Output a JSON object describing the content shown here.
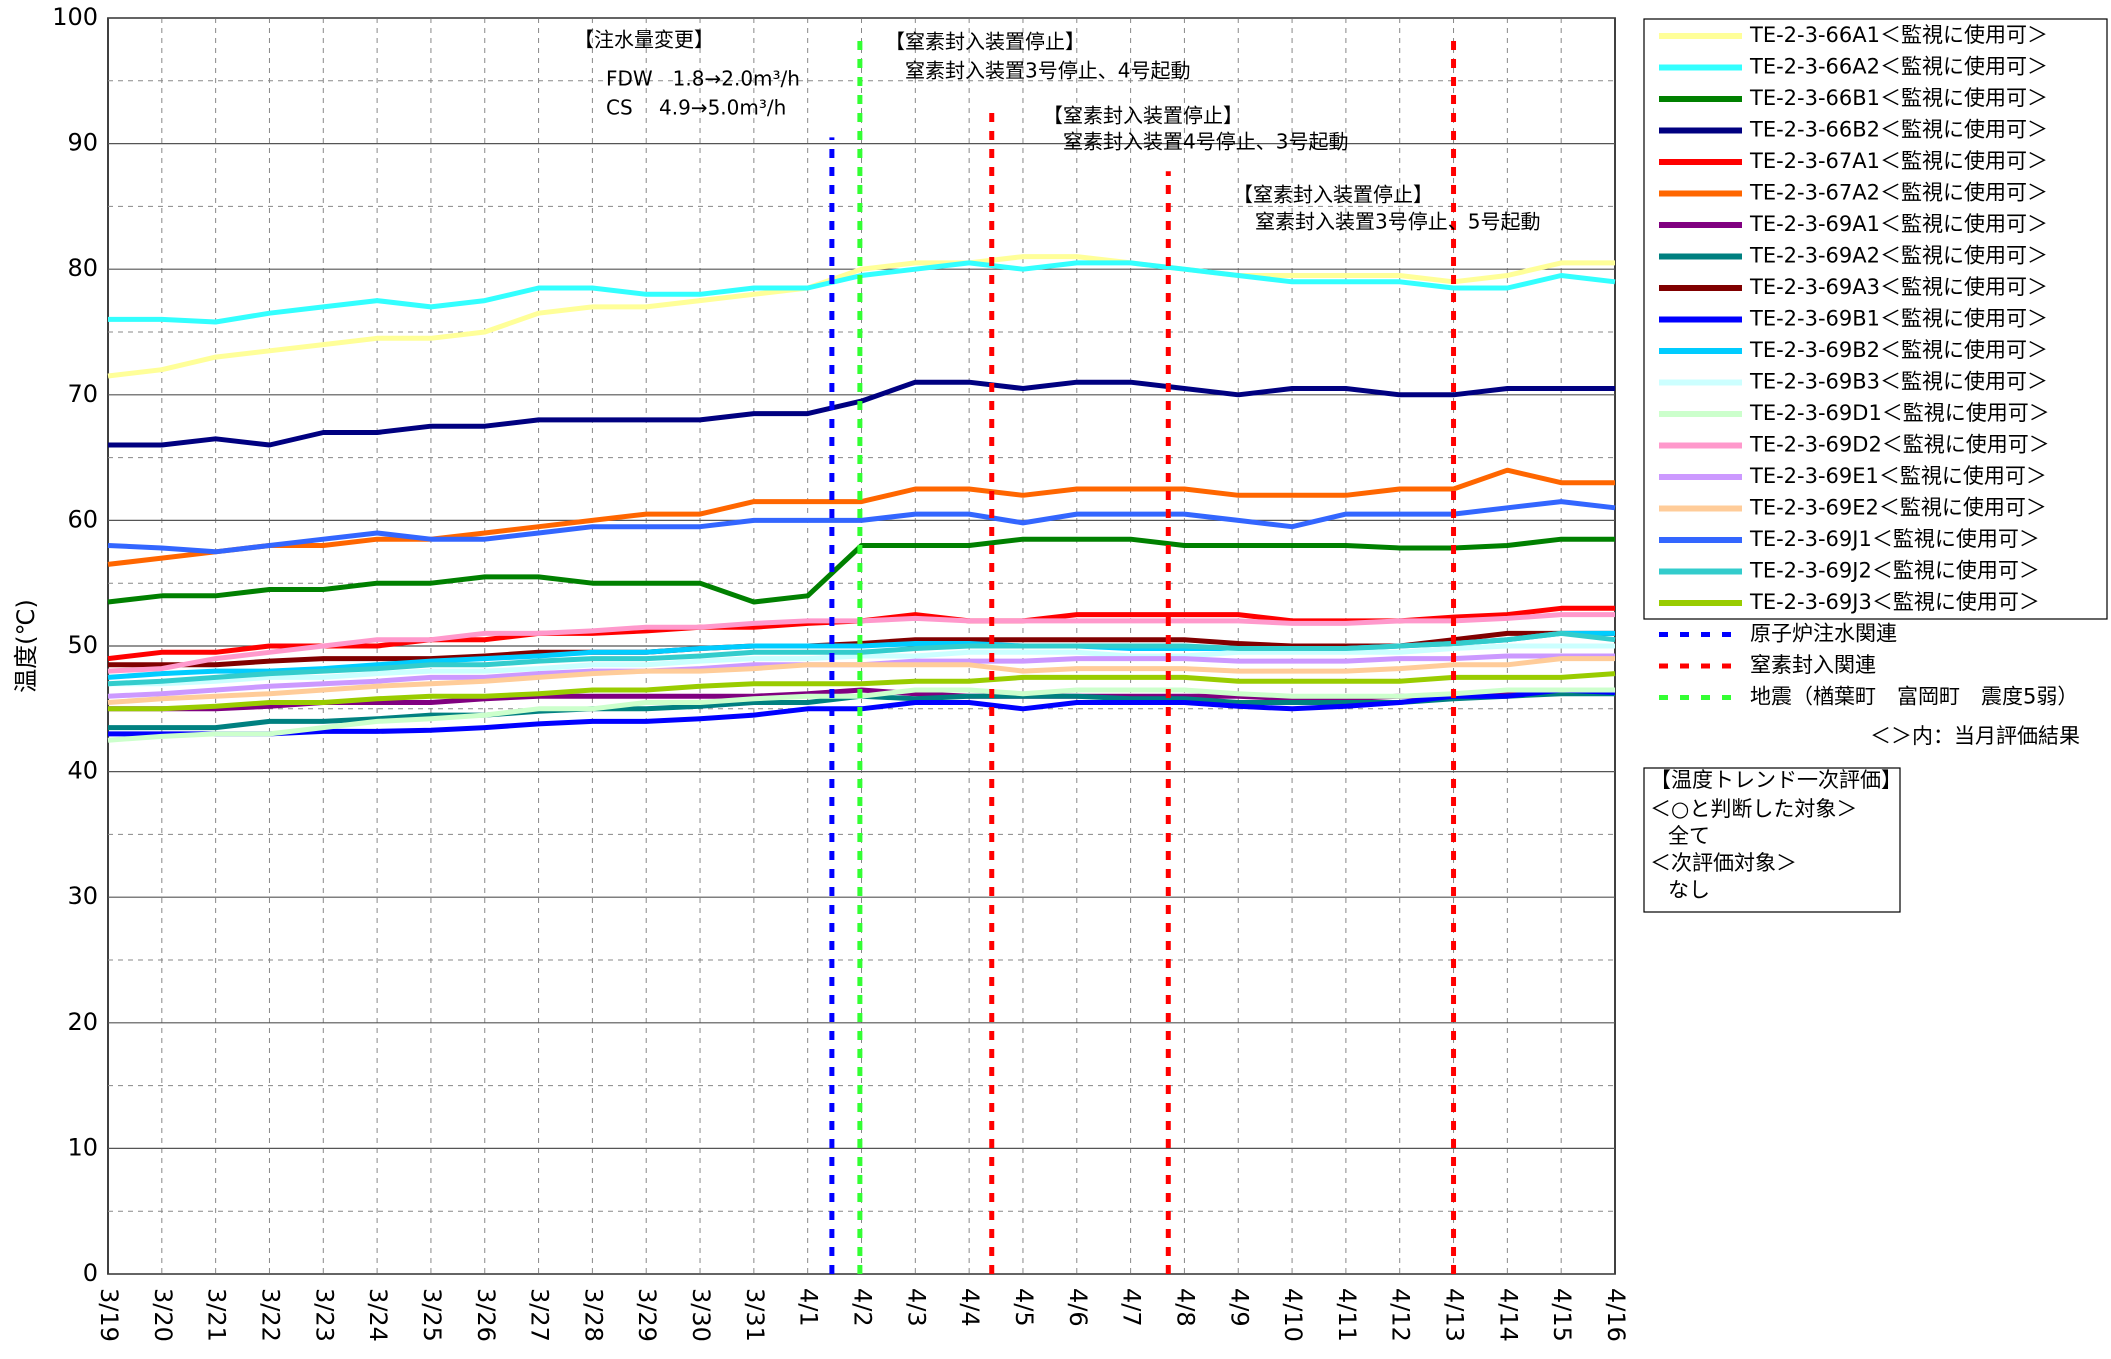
{
  "chart_data": {
    "type": "line",
    "y_label": "温度(℃)",
    "categories": [
      "3/19",
      "3/20",
      "3/21",
      "3/22",
      "3/23",
      "3/24",
      "3/25",
      "3/26",
      "3/27",
      "3/28",
      "3/29",
      "3/30",
      "3/31",
      "4/1",
      "4/2",
      "4/3",
      "4/4",
      "4/5",
      "4/6",
      "4/7",
      "4/8",
      "4/9",
      "4/10",
      "4/11",
      "4/12",
      "4/13",
      "4/14",
      "4/15",
      "4/16"
    ],
    "ylim": [
      0,
      100
    ],
    "yticks": [
      0,
      10,
      20,
      30,
      40,
      50,
      60,
      70,
      80,
      90,
      100
    ],
    "minor_yticks": [
      5,
      15,
      25,
      35,
      45,
      55,
      65,
      75,
      85,
      95
    ],
    "grid": true,
    "series": [
      {
        "name": "TE-2-3-66A1＜監視に使用可＞",
        "color": "#FFFF99",
        "values": [
          71.5,
          72,
          73,
          73.5,
          74,
          74.5,
          74.5,
          75,
          76.5,
          77,
          77,
          77.5,
          78,
          78.5,
          80,
          80.5,
          80.5,
          81,
          81,
          80.5,
          80,
          79.5,
          79.5,
          79.5,
          79.5,
          79,
          79.5,
          80.5,
          80.5
        ]
      },
      {
        "name": "TE-2-3-66A2＜監視に使用可＞",
        "color": "#33FFFF",
        "values": [
          76,
          76,
          75.8,
          76.5,
          77,
          77.5,
          77,
          77.5,
          78.5,
          78.5,
          78,
          78,
          78.5,
          78.5,
          79.5,
          80,
          80.5,
          80,
          80.5,
          80.5,
          80,
          79.5,
          79,
          79,
          79,
          78.5,
          78.5,
          79.5,
          79
        ]
      },
      {
        "name": "TE-2-3-66B1＜監視に使用可＞",
        "color": "#008000",
        "values": [
          53.5,
          54,
          54,
          54.5,
          54.5,
          55,
          55,
          55.5,
          55.5,
          55,
          55,
          55,
          53.5,
          54,
          58,
          58,
          58,
          58.5,
          58.5,
          58.5,
          58,
          58,
          58,
          58,
          57.8,
          57.8,
          58,
          58.5,
          58.5
        ]
      },
      {
        "name": "TE-2-3-66B2＜監視に使用可＞",
        "color": "#000080",
        "values": [
          66,
          66,
          66.5,
          66,
          67,
          67,
          67.5,
          67.5,
          68,
          68,
          68,
          68,
          68.5,
          68.5,
          69.5,
          71,
          71,
          70.5,
          71,
          71,
          70.5,
          70,
          70.5,
          70.5,
          70,
          70,
          70.5,
          70.5,
          70.5
        ]
      },
      {
        "name": "TE-2-3-67A1＜監視に使用可＞",
        "color": "#FF0000",
        "values": [
          49,
          49.5,
          49.5,
          50,
          50,
          50,
          50.5,
          50.5,
          51,
          51,
          51.2,
          51.5,
          51.5,
          51.8,
          52,
          52.5,
          52,
          52,
          52.5,
          52.5,
          52.5,
          52.5,
          52,
          52,
          52,
          52.3,
          52.5,
          53,
          53
        ]
      },
      {
        "name": "TE-2-3-67A2＜監視に使用可＞",
        "color": "#FF6600",
        "values": [
          56.5,
          57,
          57.5,
          58,
          58,
          58.5,
          58.5,
          59,
          59.5,
          60,
          60.5,
          60.5,
          61.5,
          61.5,
          61.5,
          62.5,
          62.5,
          62,
          62.5,
          62.5,
          62.5,
          62,
          62,
          62,
          62.5,
          62.5,
          64,
          63,
          63
        ]
      },
      {
        "name": "TE-2-3-69A1＜監視に使用可＞",
        "color": "#800080",
        "values": [
          45,
          45,
          45,
          45.2,
          45.5,
          45.5,
          45.5,
          45.8,
          46,
          46,
          46,
          46,
          46,
          46.2,
          46.5,
          46.2,
          46,
          46,
          46,
          46,
          46,
          46,
          45.8,
          45.8,
          46,
          46,
          46.2,
          46.5,
          46.5
        ]
      },
      {
        "name": "TE-2-3-69A2＜監視に使用可＞",
        "color": "#008080",
        "values": [
          43.5,
          43.5,
          43.5,
          44,
          44,
          44.2,
          44.5,
          44.5,
          44.8,
          45,
          45,
          45.2,
          45.5,
          45.5,
          46,
          45.8,
          46,
          46,
          46,
          45.8,
          45.8,
          45.5,
          45.5,
          45.5,
          45.5,
          45.8,
          46,
          46.2,
          46.2
        ]
      },
      {
        "name": "TE-2-3-69A3＜監視に使用可＞",
        "color": "#800000",
        "values": [
          48.5,
          48.5,
          48.5,
          48.8,
          49,
          49,
          49,
          49.2,
          49.5,
          49.5,
          49.5,
          49.8,
          50,
          50,
          50.2,
          50.5,
          50.5,
          50.5,
          50.5,
          50.5,
          50.5,
          50.2,
          50,
          50,
          50,
          50.5,
          51,
          51,
          51
        ]
      },
      {
        "name": "TE-2-3-69B1＜監視に使用可＞",
        "color": "#0000FF",
        "values": [
          43,
          43,
          43,
          43,
          43.2,
          43.2,
          43.3,
          43.5,
          43.8,
          44,
          44,
          44.2,
          44.5,
          45,
          45,
          45.5,
          45.5,
          45,
          45.5,
          45.5,
          45.5,
          45.2,
          45,
          45.2,
          45.5,
          46,
          46,
          46.5,
          46.3
        ]
      },
      {
        "name": "TE-2-3-69B2＜監視に使用可＞",
        "color": "#00CCFF",
        "values": [
          47.5,
          47.8,
          48,
          48,
          48.2,
          48.5,
          48.8,
          49,
          49.2,
          49.5,
          49.5,
          49.8,
          50,
          50,
          50,
          50.2,
          50.2,
          50,
          50,
          49.8,
          49.8,
          49.8,
          49.8,
          49.8,
          50,
          50.2,
          50.5,
          51,
          51
        ]
      },
      {
        "name": "TE-2-3-69B3＜監視に使用可＞",
        "color": "#CCFFFF",
        "values": [
          47,
          47,
          47.2,
          47.5,
          47.5,
          47.8,
          48,
          48,
          48.2,
          48.5,
          48.5,
          48.8,
          49,
          49,
          49.2,
          49.2,
          49.5,
          49.5,
          49.5,
          49.2,
          49.2,
          49.5,
          49.5,
          49.5,
          49.5,
          49.8,
          50,
          50,
          50
        ]
      },
      {
        "name": "TE-2-3-69D1＜監視に使用可＞",
        "color": "#CCFFCC",
        "values": [
          42.5,
          42.8,
          43,
          43,
          43.5,
          44,
          44.2,
          44.5,
          45,
          45,
          45.5,
          45.5,
          45.8,
          46,
          46,
          46.5,
          46.5,
          46.2,
          46.5,
          46.5,
          46.5,
          46.2,
          46,
          46,
          46,
          46.2,
          46.5,
          46.5,
          46.5
        ]
      },
      {
        "name": "TE-2-3-69D2＜監視に使用可＞",
        "color": "#FF99CC",
        "values": [
          48,
          48.2,
          49,
          49.5,
          50,
          50.5,
          50.5,
          51,
          51,
          51.2,
          51.5,
          51.5,
          51.8,
          52,
          52,
          52.2,
          52,
          52,
          52,
          52,
          52,
          52,
          51.8,
          51.8,
          52,
          52,
          52.2,
          52.5,
          52.5
        ]
      },
      {
        "name": "TE-2-3-69E1＜監視に使用可＞",
        "color": "#CC99FF",
        "values": [
          46,
          46.2,
          46.5,
          46.8,
          47,
          47.2,
          47.5,
          47.5,
          47.8,
          48,
          48,
          48.2,
          48.5,
          48.5,
          48.5,
          48.8,
          48.8,
          48.8,
          49,
          49,
          49,
          48.8,
          48.8,
          48.8,
          49,
          49,
          49.2,
          49.2,
          49.2
        ]
      },
      {
        "name": "TE-2-3-69E2＜監視に使用可＞",
        "color": "#FFCC99",
        "values": [
          45.5,
          45.8,
          46,
          46.2,
          46.5,
          46.8,
          47,
          47.2,
          47.5,
          47.8,
          48,
          48,
          48.2,
          48.5,
          48.5,
          48.5,
          48.5,
          48,
          48.2,
          48.2,
          48.2,
          48,
          48,
          48,
          48.2,
          48.5,
          48.5,
          49,
          49
        ]
      },
      {
        "name": "TE-2-3-69J1＜監視に使用可＞",
        "color": "#3366FF",
        "values": [
          58,
          57.8,
          57.5,
          58,
          58.5,
          59,
          58.5,
          58.5,
          59,
          59.5,
          59.5,
          59.5,
          60,
          60,
          60,
          60.5,
          60.5,
          59.8,
          60.5,
          60.5,
          60.5,
          60,
          59.5,
          60.5,
          60.5,
          60.5,
          61,
          61.5,
          61
        ]
      },
      {
        "name": "TE-2-3-69J2＜監視に使用可＞",
        "color": "#33CCCC",
        "values": [
          47,
          47.2,
          47.5,
          47.8,
          48,
          48.2,
          48.5,
          48.5,
          48.8,
          49,
          49,
          49.2,
          49.5,
          49.5,
          49.5,
          49.8,
          50,
          50,
          50,
          50,
          50,
          49.8,
          49.8,
          49.8,
          50,
          50.2,
          50.5,
          51,
          50.5
        ]
      },
      {
        "name": "TE-2-3-69J3＜監視に使用可＞",
        "color": "#99CC00",
        "values": [
          45,
          45,
          45.2,
          45.5,
          45.5,
          45.8,
          46,
          46,
          46.2,
          46.5,
          46.5,
          46.8,
          47,
          47,
          47,
          47.2,
          47.2,
          47.5,
          47.5,
          47.5,
          47.5,
          47.2,
          47.2,
          47.2,
          47.2,
          47.5,
          47.5,
          47.5,
          47.8
        ]
      }
    ],
    "reference_series": [
      {
        "name": "原子炉注水関連",
        "color": "#0000FF",
        "lines": [
          {
            "x": 13.45,
            "top": 90.5
          }
        ]
      },
      {
        "name": "窒素封入関連",
        "color": "#FF0000",
        "lines": [
          {
            "x": 16.42,
            "top": 93
          },
          {
            "x": 19.7,
            "top": 87.8
          },
          {
            "x": 25,
            "top": 98.5
          }
        ]
      },
      {
        "name": "地震（楢葉町　富岡町　震度5弱）",
        "color": "#33FF33",
        "lines": [
          {
            "x": 13.97,
            "top": 98.5
          }
        ]
      }
    ],
    "legend_note": "＜＞内：当月評価結果",
    "annotations": [
      [
        "【注水量変更】",
        "FDW　1.8→2.0m³/h",
        "CS　 4.9→5.0m³/h"
      ],
      [
        "【窒素封入装置停止】",
        "窒素封入装置3号停止、4号起動"
      ],
      [
        "【窒素封入装置停止】",
        "窒素封入装置4号停止、3号起動"
      ],
      [
        "【窒素封入装置停止】",
        "窒素封入装置3号停止、5号起動"
      ]
    ],
    "evaluation_box": [
      "【温度トレンド一次評価】",
      "＜○と判断した対象＞",
      "全て",
      "＜次評価対象＞",
      "なし"
    ]
  }
}
